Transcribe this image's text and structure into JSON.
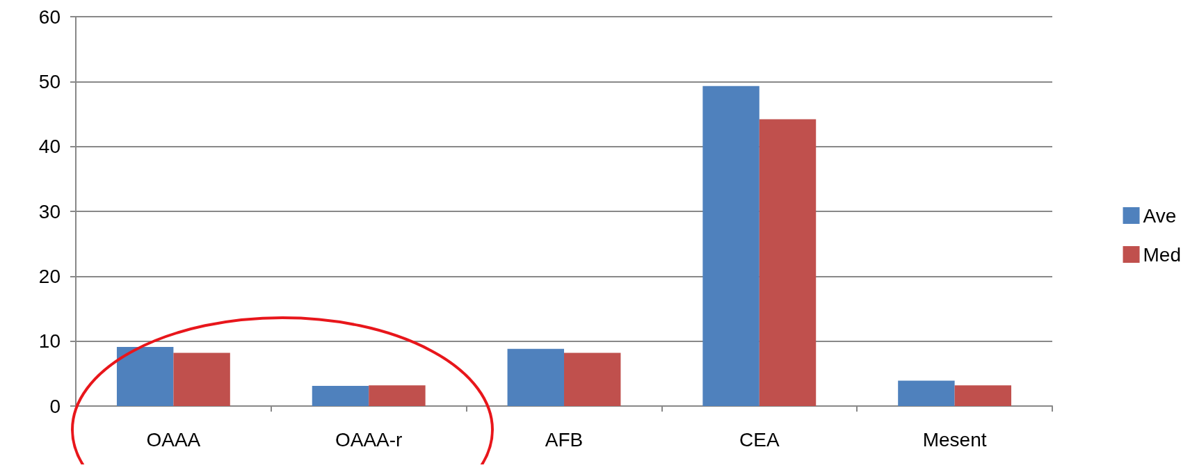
{
  "chart_data": {
    "type": "bar",
    "categories": [
      "OAAA",
      "OAAA-r",
      "AFB",
      "CEA",
      "Mesent"
    ],
    "series": [
      {
        "name": "Ave",
        "color": "#4f81bd",
        "values": [
          9.1,
          3.1,
          8.8,
          49.3,
          3.9
        ]
      },
      {
        "name": "Med",
        "color": "#c0504d",
        "values": [
          8.2,
          3.2,
          8.2,
          44.2,
          3.2
        ]
      }
    ],
    "ylim": [
      0,
      60
    ],
    "yticks": [
      0,
      10,
      20,
      30,
      40,
      50,
      60
    ],
    "grid": "y",
    "legend": "right"
  }
}
